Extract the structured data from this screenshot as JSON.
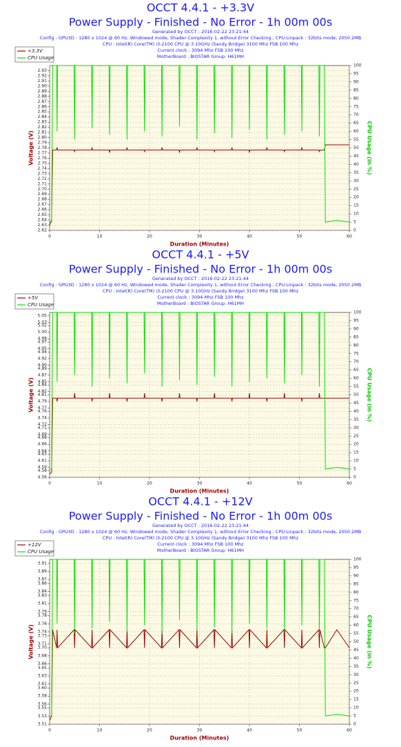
{
  "chart_data": [
    {
      "type": "line",
      "title": "OCCT 4.4.1 - +3.3V",
      "subtitle": "Power Supply - Finished - No Error - 1h 00m 00s",
      "info": [
        "Generated by OCCT : 2016-02-22 23:21:44",
        "Config : GPU3D : 1280 x 1024 @ 60 Hz, Windowed mode, Shader Complexity 1, without Error Checking ; CPU:Linpack : 32bits mode, 2050.2MB",
        "CPU : Intel(R) Core(TM) i3-2100 CPU @ 3.10GHz (Sandy Bridge) 3100 Mhz FSB 100 Mhz",
        "Current clock : 3094 Mhz FSB 100 Mhz",
        "MotherBoard : BIOSTAR Group: H61MH"
      ],
      "xlabel": "Duration (Minutes)",
      "ylabel": "Voltage (V)",
      "y2label": "CPU Usage (in %)",
      "x": [
        0,
        0.4,
        0.6,
        1.4,
        1.5,
        1.6,
        4.9,
        5,
        5.1,
        8.4,
        8.5,
        8.6,
        11.9,
        12,
        12.1,
        15.4,
        15.5,
        15.6,
        18.9,
        19,
        19.1,
        22.4,
        22.5,
        22.6,
        25.9,
        26,
        26.1,
        29.4,
        29.5,
        29.6,
        32.9,
        33,
        33.1,
        36.4,
        36.5,
        36.6,
        39.9,
        40,
        40.1,
        43.4,
        43.5,
        43.6,
        46.9,
        47,
        47.1,
        50.4,
        50.5,
        50.6,
        53.9,
        54,
        54.1,
        55,
        55.2,
        57.5,
        60
      ],
      "series": [
        {
          "name": "+3.3V",
          "color": "#a00000",
          "values": [
            2.63,
            2.64,
            2.776,
            2.776,
            2.781,
            2.776,
            2.776,
            2.773,
            2.776,
            2.776,
            2.781,
            2.776,
            2.776,
            2.771,
            2.776,
            2.776,
            2.781,
            2.776,
            2.776,
            2.773,
            2.776,
            2.776,
            2.781,
            2.776,
            2.776,
            2.771,
            2.776,
            2.776,
            2.781,
            2.776,
            2.776,
            2.773,
            2.776,
            2.776,
            2.781,
            2.776,
            2.776,
            2.771,
            2.776,
            2.776,
            2.781,
            2.776,
            2.776,
            2.773,
            2.776,
            2.776,
            2.781,
            2.776,
            2.776,
            2.773,
            2.776,
            2.776,
            2.786,
            2.786,
            2.786
          ]
        },
        {
          "name": "CPU Usage",
          "color": "#00e000",
          "axis": "y2",
          "values": [
            5,
            5,
            100,
            100,
            60,
            100,
            100,
            55,
            100,
            100,
            62,
            100,
            100,
            58,
            100,
            100,
            55,
            100,
            100,
            60,
            100,
            100,
            57,
            100,
            100,
            63,
            100,
            100,
            55,
            100,
            100,
            59,
            100,
            100,
            56,
            100,
            100,
            61,
            100,
            100,
            55,
            100,
            100,
            58,
            100,
            100,
            60,
            100,
            100,
            57,
            100,
            100,
            5,
            6,
            5
          ]
        }
      ],
      "xlim": [
        0,
        60
      ],
      "xticks": [
        0,
        10,
        20,
        30,
        40,
        50,
        60
      ],
      "ylim": [
        2.62,
        2.94
      ],
      "yticks": [
        2.62,
        2.63,
        2.64,
        2.65,
        2.66,
        2.67,
        2.68,
        2.69,
        {
          "value": 2.7,
          "label": "2.70"
        },
        2.71,
        2.72,
        2.73,
        2.74,
        2.75,
        2.76,
        2.77,
        2.78,
        2.79,
        {
          "value": 2.8,
          "label": "2.80"
        },
        2.81,
        2.82,
        2.83,
        2.84,
        2.85,
        2.86,
        2.87,
        2.88,
        2.89,
        {
          "value": 2.9,
          "label": "2.90"
        },
        2.91,
        2.92,
        2.93
      ],
      "y2lim": [
        0,
        100
      ],
      "y2ticks": [
        0,
        5,
        10,
        15,
        20,
        25,
        30,
        35,
        40,
        45,
        50,
        55,
        60,
        65,
        70,
        75,
        80,
        85,
        90,
        95,
        100
      ],
      "grid": true
    },
    {
      "type": "line",
      "title": "OCCT 4.4.1 - +5V",
      "subtitle": "Power Supply - Finished - No Error - 1h 00m 00s",
      "info": [
        "Generated by OCCT : 2016-02-22 23:21:44",
        "Config : GPU3D : 1280 x 1024 @ 60 Hz, Windowed mode, Shader Complexity 1, without Error Checking ; CPU:Linpack : 32bits mode, 2050.2MB",
        "CPU : Intel(R) Core(TM) i3-2100 CPU @ 3.10GHz (Sandy Bridge) 3100 Mhz FSB 100 Mhz",
        "Current clock : 3094 Mhz FSB 100 Mhz",
        "MotherBoard : BIOSTAR Group: H61MH"
      ],
      "xlabel": "Duration (Minutes)",
      "ylabel": "Voltage (V)",
      "y2label": "CPU Usage (in %)",
      "x": [
        0,
        0.4,
        0.6,
        1.4,
        1.5,
        1.6,
        4.9,
        5,
        5.1,
        8.4,
        8.5,
        8.6,
        11.9,
        12,
        12.1,
        15.4,
        15.5,
        15.6,
        18.9,
        19,
        19.1,
        22.4,
        22.5,
        22.6,
        25.9,
        26,
        26.1,
        29.4,
        29.5,
        29.6,
        32.9,
        33,
        33.1,
        36.4,
        36.5,
        36.6,
        39.9,
        40,
        40.1,
        43.4,
        43.5,
        43.6,
        46.9,
        47,
        47.1,
        50.4,
        50.5,
        50.6,
        53.9,
        54,
        54.1,
        55,
        55.2,
        57.5,
        60
      ],
      "series": [
        {
          "name": "+5V",
          "color": "#a00000",
          "values": [
            4.57,
            4.575,
            4.8,
            4.8,
            4.79,
            4.8,
            4.8,
            4.815,
            4.8,
            4.8,
            4.79,
            4.8,
            4.8,
            4.815,
            4.8,
            4.8,
            4.79,
            4.8,
            4.8,
            4.815,
            4.8,
            4.8,
            4.79,
            4.8,
            4.8,
            4.815,
            4.8,
            4.8,
            4.79,
            4.8,
            4.8,
            4.815,
            4.8,
            4.8,
            4.79,
            4.8,
            4.8,
            4.815,
            4.8,
            4.8,
            4.79,
            4.8,
            4.8,
            4.815,
            4.8,
            4.8,
            4.79,
            4.8,
            4.8,
            4.815,
            4.8,
            4.8,
            4.8,
            4.8,
            4.8
          ]
        },
        {
          "name": "CPU Usage",
          "color": "#00e000",
          "axis": "y2",
          "values": [
            5,
            5,
            100,
            100,
            58,
            100,
            100,
            62,
            100,
            100,
            55,
            100,
            100,
            60,
            100,
            100,
            57,
            100,
            100,
            63,
            100,
            100,
            55,
            100,
            100,
            59,
            100,
            100,
            56,
            100,
            100,
            61,
            100,
            100,
            55,
            100,
            100,
            58,
            100,
            100,
            60,
            100,
            100,
            57,
            100,
            100,
            62,
            100,
            100,
            55,
            100,
            100,
            5,
            6,
            5
          ]
        }
      ],
      "xlim": [
        0,
        60
      ],
      "xticks": [
        0,
        10,
        20,
        30,
        40,
        50,
        60
      ],
      "ylim": [
        4.56,
        5.06
      ],
      "yticks": [
        4.56,
        4.58,
        4.59,
        4.61,
        4.63,
        4.64,
        4.66,
        4.68,
        4.69,
        4.71,
        4.72,
        4.74,
        4.76,
        4.77,
        4.79,
        4.81,
        4.82,
        4.84,
        4.85,
        4.87,
        4.89,
        {
          "value": 4.9,
          "label": "4.90"
        },
        4.92,
        4.94,
        4.95,
        4.97,
        4.98,
        {
          "value": 5,
          "label": "5.00"
        },
        5.02,
        5.03,
        5.05
      ],
      "y2lim": [
        0,
        100
      ],
      "y2ticks": [
        0,
        5,
        10,
        15,
        20,
        25,
        30,
        35,
        40,
        45,
        50,
        55,
        60,
        65,
        70,
        75,
        80,
        85,
        90,
        95,
        100
      ],
      "grid": true
    },
    {
      "type": "line",
      "title": "OCCT 4.4.1 - +12V",
      "subtitle": "Power Supply - Finished - No Error - 1h 00m 00s",
      "info": [
        "Generated by OCCT : 2016-02-22 23:21:44",
        "Config : GPU3D : 1280 x 1024 @ 60 Hz, Windowed mode, Shader Complexity 1, without Error Checking ; CPU:Linpack : 32bits mode, 2050.2MB",
        "CPU : Intel(R) Core(TM) i3-2100 CPU @ 3.10GHz (Sandy Bridge) 3100 Mhz FSB 100 Mhz",
        "Current clock : 3094 Mhz FSB 100 Mhz",
        "MotherBoard : BIOSTAR Group: H61MH"
      ],
      "xlabel": "Duration (Minutes)",
      "ylabel": "Voltage (V)",
      "y2label": "CPU Usage (in %)",
      "x": [
        0,
        0.4,
        0.6,
        1.4,
        1.5,
        1.6,
        4.9,
        5,
        5.1,
        8.4,
        8.5,
        8.6,
        11.9,
        12,
        12.1,
        15.4,
        15.5,
        15.6,
        18.9,
        19,
        19.1,
        22.4,
        22.5,
        22.6,
        25.9,
        26,
        26.1,
        29.4,
        29.5,
        29.6,
        32.9,
        33,
        33.1,
        36.4,
        36.5,
        36.6,
        39.9,
        40,
        40.1,
        43.4,
        43.5,
        43.6,
        46.9,
        47,
        47.1,
        50.4,
        50.5,
        50.6,
        53.9,
        54,
        54.1,
        55,
        55.2,
        57.5,
        60
      ],
      "series": [
        {
          "name": "+12V",
          "color": "#a00000",
          "values": [
            3.52,
            3.53,
            3.745,
            3.7,
            3.745,
            3.7,
            3.745,
            3.7,
            3.745,
            3.7,
            3.745,
            3.7,
            3.745,
            3.7,
            3.745,
            3.7,
            3.745,
            3.7,
            3.745,
            3.7,
            3.745,
            3.7,
            3.745,
            3.7,
            3.745,
            3.7,
            3.745,
            3.7,
            3.745,
            3.7,
            3.745,
            3.7,
            3.745,
            3.7,
            3.745,
            3.7,
            3.745,
            3.7,
            3.745,
            3.7,
            3.745,
            3.7,
            3.745,
            3.7,
            3.745,
            3.7,
            3.745,
            3.7,
            3.745,
            3.7,
            3.745,
            3.7,
            3.7,
            3.745,
            3.7
          ]
        },
        {
          "name": "CPU Usage",
          "color": "#00e000",
          "axis": "y2",
          "values": [
            5,
            5,
            100,
            100,
            61,
            100,
            100,
            55,
            100,
            100,
            58,
            100,
            100,
            62,
            100,
            100,
            56,
            100,
            100,
            60,
            100,
            100,
            55,
            100,
            100,
            63,
            100,
            100,
            57,
            100,
            100,
            59,
            100,
            100,
            55,
            100,
            100,
            61,
            100,
            100,
            58,
            100,
            100,
            56,
            100,
            100,
            60,
            100,
            100,
            55,
            100,
            100,
            5,
            6,
            5
          ]
        }
      ],
      "xlim": [
        0,
        60
      ],
      "xticks": [
        0,
        10,
        20,
        30,
        40,
        50,
        60
      ],
      "ylim": [
        3.51,
        3.92
      ],
      "yticks": [
        3.51,
        3.53,
        3.55,
        3.56,
        3.58,
        {
          "value": 3.6,
          "label": "3.60"
        },
        3.61,
        3.63,
        3.65,
        3.66,
        3.68,
        {
          "value": 3.7,
          "label": "3.70"
        },
        3.71,
        3.73,
        3.74,
        3.76,
        3.78,
        3.79,
        3.81,
        3.83,
        3.84,
        3.86,
        3.87,
        3.89,
        3.91
      ],
      "y2lim": [
        0,
        100
      ],
      "y2ticks": [
        0,
        5,
        10,
        15,
        20,
        25,
        30,
        35,
        40,
        45,
        50,
        55,
        60,
        65,
        70,
        75,
        80,
        85,
        90,
        95,
        100
      ],
      "grid": true
    }
  ]
}
